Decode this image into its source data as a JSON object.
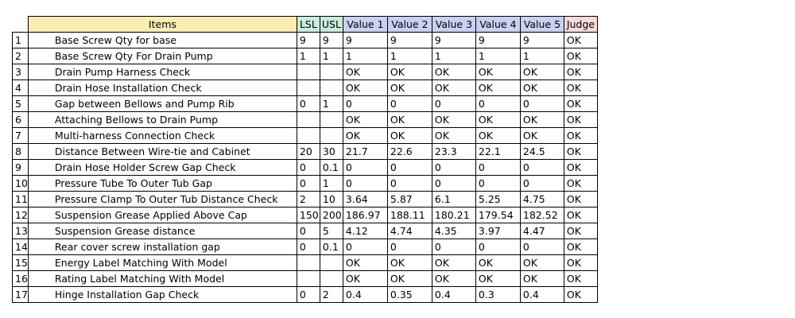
{
  "colors": {
    "items_header": "#fcecb4",
    "limit_header": "#c8ecdc",
    "value_header": "#cad0f2",
    "judge_header": "#fcdada"
  },
  "headers": [
    "Items",
    "LSL",
    "USL",
    "Value 1",
    "Value 2",
    "Value 3",
    "Value 4",
    "Value 5",
    "Judge"
  ],
  "rows": [
    [
      "1",
      "Base Screw Qty for base",
      "9",
      "9",
      "9",
      "9",
      "9",
      "9",
      "9",
      "OK"
    ],
    [
      "2",
      "Base Screw Qty For Drain Pump",
      "1",
      "1",
      "1",
      "1",
      "1",
      "1",
      "1",
      "OK"
    ],
    [
      "3",
      "Drain Pump Harness Check",
      "",
      "",
      "OK",
      "OK",
      "OK",
      "OK",
      "OK",
      "OK"
    ],
    [
      "4",
      "Drain Hose Installation Check",
      "",
      "",
      "OK",
      "OK",
      "OK",
      "OK",
      "OK",
      "OK"
    ],
    [
      "5",
      "Gap between Bellows and Pump Rib",
      "0",
      "1",
      "0",
      "0",
      "0",
      "0",
      "0",
      "OK"
    ],
    [
      "6",
      "Attaching Bellows to Drain Pump",
      "",
      "",
      "OK",
      "OK",
      "OK",
      "OK",
      "OK",
      "OK"
    ],
    [
      "7",
      "Multi-harness Connection Check",
      "",
      "",
      "OK",
      "OK",
      "OK",
      "OK",
      "OK",
      "OK"
    ],
    [
      "8",
      "Distance Between Wire-tie and Cabinet",
      "20",
      "30",
      "21.7",
      "22.6",
      "23.3",
      "22.1",
      "24.5",
      "OK"
    ],
    [
      "9",
      "Drain Hose Holder Screw Gap Check",
      "0",
      "0.1",
      "0",
      "0",
      "0",
      "0",
      "0",
      "OK"
    ],
    [
      "10",
      "Pressure Tube To Outer Tub Gap",
      "0",
      "1",
      "0",
      "0",
      "0",
      "0",
      "0",
      "OK"
    ],
    [
      "11",
      "Pressure Clamp To Outer Tub Distance Check",
      "2",
      "10",
      "3.64",
      "5.87",
      "6.1",
      "5.25",
      "4.75",
      "OK"
    ],
    [
      "12",
      "Suspension Grease Applied Above Cap",
      "150",
      "200",
      "186.97",
      "188.11",
      "180.21",
      "179.54",
      "182.52",
      "OK"
    ],
    [
      "13",
      "Suspension Grease distance",
      "0",
      "5",
      "4.12",
      "4.74",
      "4.35",
      "3.97",
      "4.47",
      "OK"
    ],
    [
      "14",
      "Rear cover screw installation gap",
      "0",
      "0.1",
      "0",
      "0",
      "0",
      "0",
      "0",
      "OK"
    ],
    [
      "15",
      "Energy Label Matching With Model",
      "",
      "",
      "OK",
      "OK",
      "OK",
      "OK",
      "OK",
      "OK"
    ],
    [
      "16",
      "Rating Label Matching With Model",
      "",
      "",
      "OK",
      "OK",
      "OK",
      "OK",
      "OK",
      "OK"
    ],
    [
      "17",
      "Hinge Installation Gap Check",
      "0",
      "2",
      "0.4",
      "0.35",
      "0.4",
      "0.3",
      "0.4",
      "OK"
    ]
  ]
}
